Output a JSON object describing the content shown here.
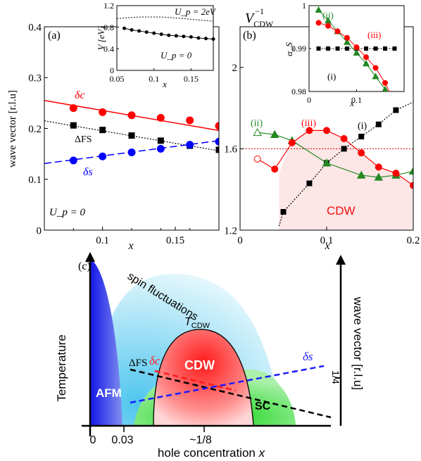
{
  "panels": {
    "a": {
      "label": "(a)",
      "annotation": "U_p = 0"
    },
    "b": {
      "label": "(b)",
      "title": "V_CDW^-1",
      "region_label": "CDW"
    },
    "c": {
      "label": "(c)"
    }
  },
  "chart_data": [
    {
      "id": "panel-a",
      "type": "scatter",
      "xlabel": "x",
      "ylabel": "wave vector [r.l.u]",
      "xlim": [
        0.06,
        0.18
      ],
      "ylim": [
        0,
        0.4
      ],
      "xticks": [
        "0.1",
        "0.15"
      ],
      "yticks": [
        "0",
        "0.1",
        "0.2",
        "0.3",
        "0.4"
      ],
      "series": [
        {
          "name": "δc",
          "color": "#ff0000",
          "marker": "circle",
          "x": [
            0.08,
            0.1,
            0.12,
            0.14,
            0.16,
            0.18
          ],
          "y": [
            0.24,
            0.232,
            0.226,
            0.221,
            0.216,
            0.205
          ],
          "fit": [
            [
              0.06,
              0.255
            ],
            [
              0.18,
              0.196
            ]
          ]
        },
        {
          "name": "ΔFS",
          "color": "#000000",
          "marker": "square",
          "x": [
            0.08,
            0.1,
            0.12,
            0.14,
            0.16,
            0.18
          ],
          "y": [
            0.206,
            0.197,
            0.186,
            0.176,
            0.166,
            0.158
          ],
          "fit": [
            [
              0.06,
              0.215
            ],
            [
              0.18,
              0.156
            ]
          ]
        },
        {
          "name": "δs",
          "color": "#0000ff",
          "marker": "circle",
          "x": [
            0.08,
            0.1,
            0.12,
            0.14,
            0.16,
            0.18
          ],
          "y": [
            0.137,
            0.145,
            0.153,
            0.16,
            0.168,
            0.174
          ],
          "fit": [
            [
              0.06,
              0.131
            ],
            [
              0.18,
              0.176
            ]
          ]
        }
      ]
    },
    {
      "id": "panel-a-inset",
      "type": "line",
      "xlabel": "x",
      "ylabel": "V [eV]",
      "xlim": [
        0.05,
        0.18
      ],
      "ylim": [
        0,
        1.2
      ],
      "xticks": [
        "0.05",
        "0.1",
        "0.15"
      ],
      "yticks": [
        "0",
        "0.4",
        "0.8",
        "1.2"
      ],
      "series": [
        {
          "name": "U_p = 2eV",
          "style": "dotted",
          "x": [
            0.05,
            0.08,
            0.11,
            0.14,
            0.18
          ],
          "y": [
            0.96,
            0.99,
            0.99,
            0.96,
            0.91
          ]
        },
        {
          "name": "U_p = 0",
          "style": "solid-markers",
          "x": [
            0.06,
            0.07,
            0.08,
            0.09,
            0.1,
            0.11,
            0.12,
            0.13,
            0.14,
            0.15,
            0.16,
            0.17,
            0.18
          ],
          "y": [
            0.78,
            0.75,
            0.73,
            0.71,
            0.69,
            0.67,
            0.65,
            0.64,
            0.63,
            0.62,
            0.6,
            0.59,
            0.58
          ]
        }
      ]
    },
    {
      "id": "panel-b",
      "type": "line",
      "xlabel": "x",
      "ylim": [
        1.2,
        2.2
      ],
      "xlim": [
        0,
        0.2
      ],
      "xticks": [
        "0",
        "0.1",
        "0.2"
      ],
      "yticks": [
        "1.2",
        "1.6",
        "2"
      ],
      "threshold": 1.6,
      "series": [
        {
          "name": "(i)",
          "color": "#000000",
          "marker": "square",
          "style": "dotted",
          "x": [
            0.05,
            0.08,
            0.1,
            0.12,
            0.14,
            0.16,
            0.18
          ],
          "y": [
            1.29,
            1.43,
            1.53,
            1.6,
            1.66,
            1.72,
            1.79
          ]
        },
        {
          "name": "(ii)",
          "color": "#228822",
          "marker": "triangle",
          "x": [
            0.02,
            0.04,
            0.06,
            0.1,
            0.14,
            0.16,
            0.18,
            0.2
          ],
          "y": [
            1.68,
            1.67,
            1.64,
            1.53,
            1.47,
            1.46,
            1.47,
            1.49
          ]
        },
        {
          "name": "(iii)",
          "color": "#ff0000",
          "marker": "circle",
          "x": [
            0.02,
            0.04,
            0.06,
            0.08,
            0.1,
            0.12,
            0.14,
            0.16,
            0.18,
            0.2
          ],
          "y": [
            1.55,
            1.5,
            1.63,
            1.69,
            1.69,
            1.65,
            1.58,
            1.51,
            1.48,
            1.42
          ]
        }
      ]
    },
    {
      "id": "panel-b-inset",
      "type": "line",
      "xlabel": "x",
      "ylabel": "α_S",
      "xlim": [
        0,
        0.2
      ],
      "ylim": [
        0.98,
        1.0
      ],
      "xticks": [
        "0",
        "0.1"
      ],
      "yticks": [
        "0.98",
        "0.99",
        "1"
      ],
      "series": [
        {
          "name": "(i)",
          "color": "#000000",
          "marker": "square",
          "style": "dotted",
          "x": [
            0.02,
            0.04,
            0.06,
            0.08,
            0.1,
            0.12,
            0.14,
            0.16,
            0.18
          ],
          "y": [
            0.99,
            0.99,
            0.99,
            0.99,
            0.99,
            0.99,
            0.99,
            0.99,
            0.99
          ]
        },
        {
          "name": "(ii)",
          "color": "#228822",
          "marker": "triangle",
          "x": [
            0.02,
            0.04,
            0.06,
            0.08,
            0.1,
            0.12,
            0.14,
            0.16,
            0.18
          ],
          "y": [
            0.999,
            0.9965,
            0.994,
            0.9915,
            0.989,
            0.9865,
            0.9835,
            0.9805,
            0.978
          ]
        },
        {
          "name": "(iii)",
          "color": "#ff0000",
          "marker": "circle",
          "x": [
            0.02,
            0.04,
            0.06,
            0.08,
            0.1,
            0.12,
            0.14,
            0.16,
            0.18
          ],
          "y": [
            0.996,
            0.9953,
            0.994,
            0.9925,
            0.9903,
            0.988,
            0.9855,
            0.982,
            0.9775
          ]
        }
      ]
    },
    {
      "id": "panel-c",
      "type": "diagram",
      "xlabel": "hole concentration x",
      "ylabel": "Temperature",
      "right_label": "wave vector [r.l.u]",
      "xticks": [
        "0",
        "0.03",
        "~1/8"
      ],
      "right_tick": "1/4",
      "regions": [
        "AFM",
        "spin fluctuations",
        "CDW",
        "SC"
      ],
      "curve_label": "T_CDW",
      "line_labels": [
        "δc",
        "δs",
        "ΔFS"
      ]
    }
  ]
}
